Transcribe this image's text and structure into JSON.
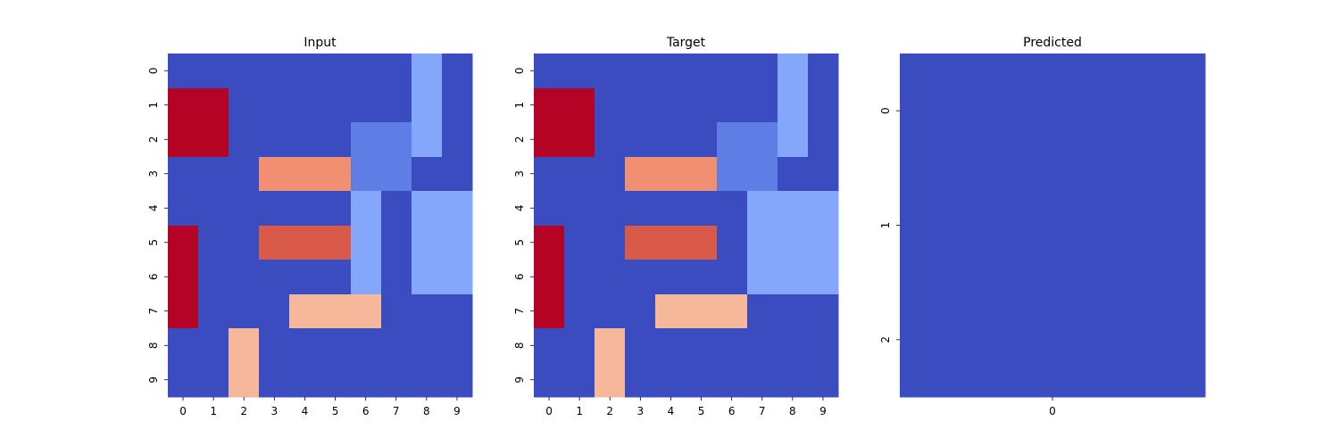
{
  "chart_data": [
    {
      "type": "heatmap",
      "title": "Input",
      "x_ticks": [
        "0",
        "1",
        "2",
        "3",
        "4",
        "5",
        "6",
        "7",
        "8",
        "9"
      ],
      "y_ticks": [
        "0",
        "1",
        "2",
        "3",
        "4",
        "5",
        "6",
        "7",
        "8",
        "9"
      ],
      "colormap": "coolwarm",
      "value_range": [
        0,
        9
      ],
      "colorbar": false,
      "values": [
        [
          0,
          0,
          0,
          0,
          0,
          0,
          0,
          0,
          2,
          0
        ],
        [
          9,
          9,
          0,
          0,
          0,
          0,
          0,
          0,
          2,
          0
        ],
        [
          9,
          9,
          0,
          0,
          0,
          0,
          1,
          1,
          2,
          0
        ],
        [
          0,
          0,
          0,
          6,
          6,
          6,
          1,
          1,
          0,
          0
        ],
        [
          0,
          0,
          0,
          0,
          0,
          0,
          2,
          0,
          2,
          2
        ],
        [
          9,
          0,
          0,
          7,
          7,
          7,
          2,
          0,
          2,
          2
        ],
        [
          9,
          0,
          0,
          0,
          0,
          0,
          2,
          0,
          2,
          2
        ],
        [
          9,
          0,
          0,
          0,
          5,
          5,
          5,
          0,
          0,
          0
        ],
        [
          0,
          0,
          5,
          0,
          0,
          0,
          0,
          0,
          0,
          0
        ],
        [
          0,
          0,
          5,
          0,
          0,
          0,
          0,
          0,
          0,
          0
        ]
      ]
    },
    {
      "type": "heatmap",
      "title": "Target",
      "x_ticks": [
        "0",
        "1",
        "2",
        "3",
        "4",
        "5",
        "6",
        "7",
        "8",
        "9"
      ],
      "y_ticks": [
        "0",
        "1",
        "2",
        "3",
        "4",
        "5",
        "6",
        "7",
        "8",
        "9"
      ],
      "colormap": "coolwarm",
      "value_range": [
        0,
        9
      ],
      "colorbar": false,
      "values": [
        [
          0,
          0,
          0,
          0,
          0,
          0,
          0,
          0,
          2,
          0
        ],
        [
          9,
          9,
          0,
          0,
          0,
          0,
          0,
          0,
          2,
          0
        ],
        [
          9,
          9,
          0,
          0,
          0,
          0,
          1,
          1,
          2,
          0
        ],
        [
          0,
          0,
          0,
          6,
          6,
          6,
          1,
          1,
          0,
          0
        ],
        [
          0,
          0,
          0,
          0,
          0,
          0,
          0,
          2,
          2,
          2
        ],
        [
          9,
          0,
          0,
          7,
          7,
          7,
          0,
          2,
          2,
          2
        ],
        [
          9,
          0,
          0,
          0,
          0,
          0,
          0,
          2,
          2,
          2
        ],
        [
          9,
          0,
          0,
          0,
          5,
          5,
          5,
          0,
          0,
          0
        ],
        [
          0,
          0,
          5,
          0,
          0,
          0,
          0,
          0,
          0,
          0
        ],
        [
          0,
          0,
          5,
          0,
          0,
          0,
          0,
          0,
          0,
          0
        ]
      ]
    },
    {
      "type": "heatmap",
      "title": "Predicted",
      "x_ticks": [
        "0"
      ],
      "y_ticks": [
        "0",
        "1",
        "2"
      ],
      "colormap": "coolwarm",
      "value_range": [
        0,
        9
      ],
      "colorbar": false,
      "values": [
        [
          0
        ],
        [
          0
        ],
        [
          0
        ]
      ]
    }
  ],
  "colors": {
    "0": "#3b4cc0",
    "1": "#5e7ee6",
    "2": "#84a6fb",
    "3": "#a9c7fd",
    "5": "#f6b89b",
    "6": "#f08f71",
    "7": "#da5a49",
    "9": "#b40426",
    "predicted_fill": "#3b4cc0"
  }
}
